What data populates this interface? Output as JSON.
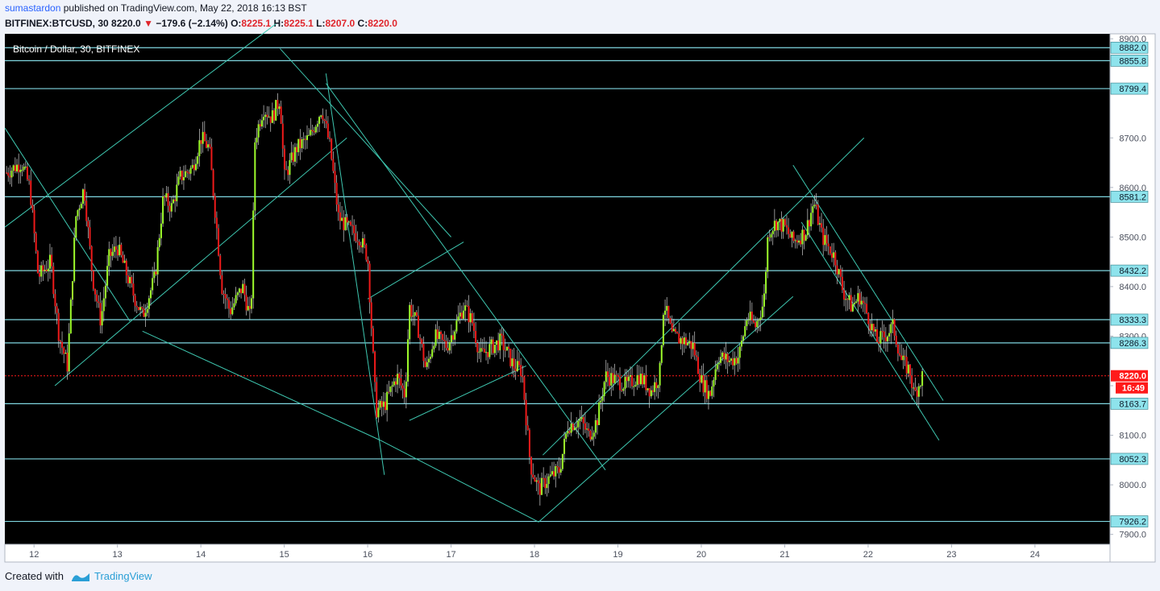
{
  "header": {
    "author": "sumastardon",
    "published_text": "published on TradingView.com, May 22, 2018 16:13 BST",
    "symbol": "BITFINEX:BTCUSD, 30",
    "last": "8220.0",
    "change": "−179.6 (−2.14%)",
    "o_label": "O:",
    "o_value": "8225.1",
    "h_label": "H:",
    "h_value": "8225.1",
    "l_label": "L:",
    "l_value": "8207.0",
    "c_label": "C:",
    "c_value": "8220.0"
  },
  "footer": {
    "created_with": "Created with",
    "brand": "TradingView"
  },
  "colors": {
    "background": "#000000",
    "bull": "#9efb2c",
    "bear": "#ee1a1a",
    "trendline": "#3ec7b0",
    "level_line": "#7fd6e0",
    "level_label_bg": "#8ee3ec",
    "price_label_bg": "#ff1a1a"
  },
  "chart_data": {
    "type": "candlestick",
    "title": "Bitcoin / Dollar, 30, BITFINEX",
    "x_ticks": [
      "12",
      "13",
      "14",
      "15",
      "16",
      "17",
      "18",
      "19",
      "20",
      "21",
      "22",
      "23",
      "24"
    ],
    "y_ticks": [
      7900,
      8000,
      8100,
      8200,
      8300,
      8400,
      8500,
      8600,
      8700,
      8800,
      8900
    ],
    "ylim": [
      7880,
      8910
    ],
    "xlim": [
      11.65,
      24.9
    ],
    "horizontal_levels": [
      8882.0,
      8855.8,
      8799.4,
      8581.2,
      8432.2,
      8333.3,
      8286.3,
      8163.7,
      8052.3,
      7926.2
    ],
    "current_price": 8220.0,
    "countdown": "16:49",
    "close_series": [
      {
        "day": 11.67,
        "price": 8630
      },
      {
        "day": 11.85,
        "price": 8650
      },
      {
        "day": 11.95,
        "price": 8600
      },
      {
        "day": 12.05,
        "price": 8420
      },
      {
        "day": 12.2,
        "price": 8450
      },
      {
        "day": 12.3,
        "price": 8300
      },
      {
        "day": 12.4,
        "price": 8240
      },
      {
        "day": 12.5,
        "price": 8540
      },
      {
        "day": 12.6,
        "price": 8600
      },
      {
        "day": 12.7,
        "price": 8420
      },
      {
        "day": 12.8,
        "price": 8330
      },
      {
        "day": 12.9,
        "price": 8460
      },
      {
        "day": 13.0,
        "price": 8480
      },
      {
        "day": 13.2,
        "price": 8380
      },
      {
        "day": 13.3,
        "price": 8340
      },
      {
        "day": 13.45,
        "price": 8420
      },
      {
        "day": 13.55,
        "price": 8580
      },
      {
        "day": 13.65,
        "price": 8560
      },
      {
        "day": 13.75,
        "price": 8620
      },
      {
        "day": 13.9,
        "price": 8640
      },
      {
        "day": 14.0,
        "price": 8700
      },
      {
        "day": 14.1,
        "price": 8680
      },
      {
        "day": 14.2,
        "price": 8500
      },
      {
        "day": 14.25,
        "price": 8400
      },
      {
        "day": 14.35,
        "price": 8350
      },
      {
        "day": 14.5,
        "price": 8400
      },
      {
        "day": 14.6,
        "price": 8330
      },
      {
        "day": 14.65,
        "price": 8700
      },
      {
        "day": 14.75,
        "price": 8760
      },
      {
        "day": 14.85,
        "price": 8740
      },
      {
        "day": 14.95,
        "price": 8780
      },
      {
        "day": 15.0,
        "price": 8620
      },
      {
        "day": 15.15,
        "price": 8680
      },
      {
        "day": 15.3,
        "price": 8700
      },
      {
        "day": 15.45,
        "price": 8760
      },
      {
        "day": 15.55,
        "price": 8680
      },
      {
        "day": 15.65,
        "price": 8540
      },
      {
        "day": 15.75,
        "price": 8520
      },
      {
        "day": 15.9,
        "price": 8500
      },
      {
        "day": 16.0,
        "price": 8460
      },
      {
        "day": 16.1,
        "price": 8150
      },
      {
        "day": 16.2,
        "price": 8160
      },
      {
        "day": 16.35,
        "price": 8220
      },
      {
        "day": 16.45,
        "price": 8180
      },
      {
        "day": 16.5,
        "price": 8360
      },
      {
        "day": 16.6,
        "price": 8320
      },
      {
        "day": 16.7,
        "price": 8230
      },
      {
        "day": 16.8,
        "price": 8300
      },
      {
        "day": 16.95,
        "price": 8280
      },
      {
        "day": 17.05,
        "price": 8320
      },
      {
        "day": 17.15,
        "price": 8360
      },
      {
        "day": 17.25,
        "price": 8330
      },
      {
        "day": 17.35,
        "price": 8260
      },
      {
        "day": 17.5,
        "price": 8280
      },
      {
        "day": 17.6,
        "price": 8290
      },
      {
        "day": 17.75,
        "price": 8240
      },
      {
        "day": 17.85,
        "price": 8230
      },
      {
        "day": 17.95,
        "price": 8040
      },
      {
        "day": 18.05,
        "price": 7990
      },
      {
        "day": 18.15,
        "price": 8010
      },
      {
        "day": 18.3,
        "price": 8030
      },
      {
        "day": 18.4,
        "price": 8120
      },
      {
        "day": 18.55,
        "price": 8130
      },
      {
        "day": 18.65,
        "price": 8100
      },
      {
        "day": 18.75,
        "price": 8130
      },
      {
        "day": 18.85,
        "price": 8220
      },
      {
        "day": 19.0,
        "price": 8210
      },
      {
        "day": 19.1,
        "price": 8200
      },
      {
        "day": 19.25,
        "price": 8220
      },
      {
        "day": 19.4,
        "price": 8190
      },
      {
        "day": 19.5,
        "price": 8220
      },
      {
        "day": 19.55,
        "price": 8370
      },
      {
        "day": 19.65,
        "price": 8300
      },
      {
        "day": 19.8,
        "price": 8290
      },
      {
        "day": 19.9,
        "price": 8280
      },
      {
        "day": 20.0,
        "price": 8210
      },
      {
        "day": 20.1,
        "price": 8180
      },
      {
        "day": 20.2,
        "price": 8260
      },
      {
        "day": 20.35,
        "price": 8250
      },
      {
        "day": 20.45,
        "price": 8260
      },
      {
        "day": 20.55,
        "price": 8340
      },
      {
        "day": 20.65,
        "price": 8320
      },
      {
        "day": 20.75,
        "price": 8370
      },
      {
        "day": 20.8,
        "price": 8510
      },
      {
        "day": 20.9,
        "price": 8530
      },
      {
        "day": 21.0,
        "price": 8520
      },
      {
        "day": 21.1,
        "price": 8490
      },
      {
        "day": 21.25,
        "price": 8510
      },
      {
        "day": 21.35,
        "price": 8570
      },
      {
        "day": 21.45,
        "price": 8500
      },
      {
        "day": 21.6,
        "price": 8460
      },
      {
        "day": 21.7,
        "price": 8390
      },
      {
        "day": 21.8,
        "price": 8360
      },
      {
        "day": 21.9,
        "price": 8380
      },
      {
        "day": 22.0,
        "price": 8340
      },
      {
        "day": 22.1,
        "price": 8290
      },
      {
        "day": 22.2,
        "price": 8300
      },
      {
        "day": 22.3,
        "price": 8320
      },
      {
        "day": 22.4,
        "price": 8250
      },
      {
        "day": 22.5,
        "price": 8230
      },
      {
        "day": 22.55,
        "price": 8180
      },
      {
        "day": 22.65,
        "price": 8220
      }
    ],
    "trendlines": [
      {
        "from": [
          11.65,
          8720
        ],
        "to": [
          13.15,
          8330
        ]
      },
      {
        "from": [
          11.65,
          8520
        ],
        "to": [
          14.9,
          8930
        ]
      },
      {
        "from": [
          12.25,
          8200
        ],
        "to": [
          15.75,
          8700
        ]
      },
      {
        "from": [
          13.3,
          8310
        ],
        "to": [
          16.15,
          8090
        ]
      },
      {
        "from": [
          14.95,
          8880
        ],
        "to": [
          17.0,
          8500
        ]
      },
      {
        "from": [
          15.5,
          8810
        ],
        "to": [
          18.85,
          8030
        ]
      },
      {
        "from": [
          15.5,
          8830
        ],
        "to": [
          16.2,
          8020
        ]
      },
      {
        "from": [
          16.15,
          8090
        ],
        "to": [
          18.05,
          7925
        ]
      },
      {
        "from": [
          16.0,
          8375
        ],
        "to": [
          17.15,
          8490
        ]
      },
      {
        "from": [
          16.5,
          8130
        ],
        "to": [
          17.9,
          8240
        ]
      },
      {
        "from": [
          18.05,
          7925
        ],
        "to": [
          21.1,
          8380
        ]
      },
      {
        "from": [
          18.1,
          8060
        ],
        "to": [
          21.95,
          8700
        ]
      },
      {
        "from": [
          21.1,
          8645
        ],
        "to": [
          22.9,
          8170
        ]
      },
      {
        "from": [
          21.2,
          8530
        ],
        "to": [
          22.85,
          8090
        ]
      }
    ]
  }
}
